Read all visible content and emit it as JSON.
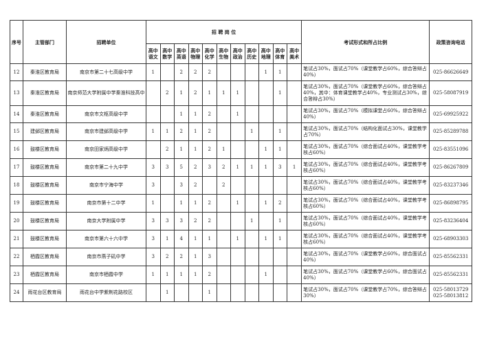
{
  "headers": {
    "no": "序号",
    "dept": "主管部门",
    "unit": "招聘单位",
    "positions": "招 聘 岗 位",
    "exam": "考试形式和所占比例",
    "phone": "政策咨询电话",
    "subjects": [
      "高中语文",
      "高中数学",
      "高中英语",
      "高中物理",
      "高中化学",
      "高中生物",
      "高中政治",
      "高中历史",
      "高中地理",
      "高中体育",
      "高中美术"
    ]
  },
  "rows": [
    {
      "no": "12",
      "dept": "秦淮区教育局",
      "unit": "南京市第二十七高级中学",
      "counts": [
        "1",
        "",
        "2",
        "2",
        "2",
        "",
        "",
        "",
        "1",
        "1",
        ""
      ],
      "exam": "笔试占30%，面试占70%（课堂教学占60%，综合答辩占40%）",
      "phone": "025-86626649"
    },
    {
      "no": "13",
      "dept": "秦淮区教育局",
      "unit": "南京师范大学附属中学秦淮科技高中",
      "counts": [
        "",
        "2",
        "1",
        "2",
        "1",
        "1",
        "1",
        "",
        "",
        "1",
        ""
      ],
      "exam": "笔试占30%，面试占70%（课堂教学占60%，综合答辩占40%，其中：体育课堂教学占40%，专业测试占30%，综合答辩占30%）",
      "phone": "025-58087919"
    },
    {
      "no": "14",
      "dept": "秦淮区教育局",
      "unit": "南京市文枢高级中学",
      "counts": [
        "",
        "",
        "1",
        "1",
        "2",
        "",
        "1",
        "",
        "",
        "",
        ""
      ],
      "exam": "笔试占30%，面试占70%（模拟课堂占60%，综合答辩占40%）",
      "phone": "025-69925922"
    },
    {
      "no": "15",
      "dept": "建邺区教育局",
      "unit": "南京市建邺高级中学",
      "counts": [
        "1",
        "1",
        "2",
        "1",
        "2",
        "",
        "",
        "1",
        "",
        "1",
        ""
      ],
      "exam": "笔试占30%，面试占70%（结构化面试占30%，课堂教学占70%）",
      "phone": "025-85289788"
    },
    {
      "no": "16",
      "dept": "鼓楼区教育局",
      "unit": "南京田家炳高级中学",
      "counts": [
        "",
        "2",
        "1",
        "1",
        "2",
        "1",
        "",
        "",
        "1",
        "1",
        ""
      ],
      "exam": "笔试占30%，面试占70%（综合面试占40%，课堂教学考核占60%）",
      "phone": "025-83551096"
    },
    {
      "no": "17",
      "dept": "鼓楼区教育局",
      "unit": "南京市第二十九中学",
      "counts": [
        "3",
        "3",
        "5",
        "2",
        "3",
        "2",
        "1",
        "1",
        "1",
        "3",
        "1"
      ],
      "exam": "笔试占30%，面试占70%（综合面试占40%，课堂教学考核占60%）",
      "phone": "025-86267809"
    },
    {
      "no": "18",
      "dept": "鼓楼区教育局",
      "unit": "南京市宁海中学",
      "counts": [
        "3",
        "",
        "3",
        "2",
        "",
        "2",
        "",
        "",
        "",
        "",
        ""
      ],
      "exam": "笔试占30%，面试占70%（综合面试占40%，课堂教学考核占60%）",
      "phone": "025-83237346"
    },
    {
      "no": "19",
      "dept": "鼓楼区教育局",
      "unit": "南京市第十二中学",
      "counts": [
        "1",
        "",
        "1",
        "1",
        "2",
        "",
        "1",
        "",
        "1",
        "2",
        ""
      ],
      "exam": "笔试占30%，面试占70%（综合面试占40%，课堂教学考核占60%）",
      "phone": "025-86898795"
    },
    {
      "no": "20",
      "dept": "鼓楼区教育局",
      "unit": "南京大学附属中学",
      "counts": [
        "3",
        "3",
        "3",
        "2",
        "2",
        "",
        "",
        "1",
        "",
        "1",
        ""
      ],
      "exam": "笔试占30%，面试占70%（综合面试占40%，课堂教学考核占60%）",
      "phone": "025-83236404"
    },
    {
      "no": "21",
      "dept": "鼓楼区教育局",
      "unit": "南京市第六十六中学",
      "counts": [
        "3",
        "1",
        "4",
        "1",
        "1",
        "",
        "1",
        "",
        "1",
        "1",
        ""
      ],
      "exam": "笔试占30%，面试占70%（综合面试占40%，课堂教学考核占60%）",
      "phone": "025-68903303"
    },
    {
      "no": "22",
      "dept": "栖霞区教育局",
      "unit": "南京市燕子矶中学",
      "counts": [
        "3",
        "2",
        "2",
        "1",
        "3",
        "",
        "",
        "",
        "",
        "",
        ""
      ],
      "exam": "笔试占30%，面试占70%（课堂教学占60%，综合面试占40%）",
      "phone": "025-85562331"
    },
    {
      "no": "23",
      "dept": "栖霞区教育局",
      "unit": "南京市栖霞中学",
      "counts": [
        "1",
        "1",
        "1",
        "1",
        "2",
        "",
        "",
        "",
        "1",
        "",
        ""
      ],
      "exam": "笔试占30%，面试占70%（课堂教学占60%，综合面试占40%）",
      "phone": "025-85562331"
    },
    {
      "no": "24",
      "dept": "雨花台区教育局",
      "unit": "雨花台中学紫荆花路校区",
      "counts": [
        "",
        "1",
        "",
        "",
        "1",
        "",
        "",
        "",
        "",
        "",
        ""
      ],
      "exam": "笔试占30%，面试占70%（课堂教学占70%，综合答辩占30%）",
      "phone": "025-58013729\n025-58013812"
    }
  ]
}
